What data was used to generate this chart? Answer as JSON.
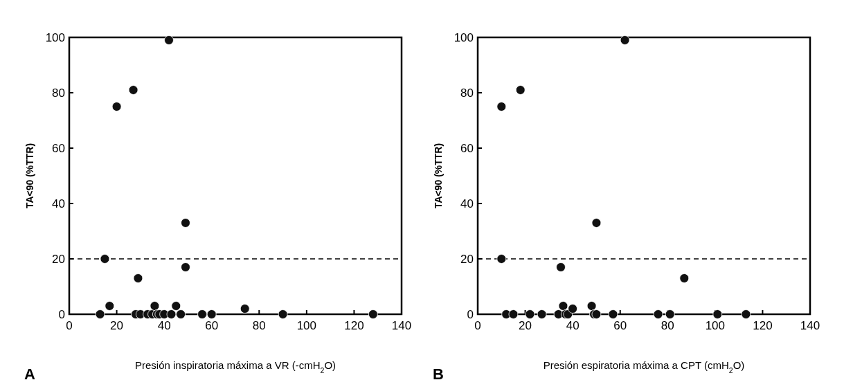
{
  "chart_data": [
    {
      "type": "scatter",
      "xlabel": "Presión inspiratoria máxima a VR (-cmH$_{2}$O)",
      "ylabel": "TA<90 (%TTR)",
      "annotations": [
        "A"
      ],
      "xlim": [
        0,
        140
      ],
      "xticks": [
        0,
        20,
        40,
        60,
        80,
        100,
        120,
        140
      ],
      "ylim": [
        0,
        100
      ],
      "yticks": [
        0,
        20,
        40,
        60,
        80,
        100
      ],
      "marker": "circle",
      "grid": false,
      "ref_lines": [
        {
          "axis": "y",
          "value": 20,
          "line_style": "dashed",
          "color": "#000000"
        }
      ],
      "series": [
        {
          "color": "#111111",
          "x": [
            13,
            15,
            17,
            20,
            27,
            28,
            29,
            30,
            33,
            35,
            36,
            37,
            38,
            40,
            42,
            43,
            45,
            47,
            49,
            49,
            56,
            60,
            74,
            90,
            128
          ],
          "values": [
            0,
            20,
            3,
            75,
            81,
            0,
            13,
            0,
            0,
            0,
            3,
            0,
            0,
            0,
            99,
            0,
            3,
            0,
            17,
            33,
            0,
            0,
            2,
            0,
            0
          ]
        }
      ]
    },
    {
      "type": "scatter",
      "xlabel": "Presión espiratoria máxima a CPT (cmH$_{2}$O)",
      "ylabel": "TA<90 (%TTR)",
      "annotations": [
        "B"
      ],
      "xlim": [
        0,
        140
      ],
      "xticks": [
        0,
        20,
        40,
        60,
        80,
        100,
        120,
        140
      ],
      "ylim": [
        0,
        100
      ],
      "yticks": [
        0,
        20,
        40,
        60,
        80,
        100
      ],
      "marker": "circle",
      "grid": false,
      "ref_lines": [
        {
          "axis": "y",
          "value": 20,
          "line_style": "dashed",
          "color": "#000000"
        }
      ],
      "series": [
        {
          "color": "#111111",
          "x": [
            10,
            10,
            12,
            15,
            18,
            22,
            27,
            34,
            35,
            36,
            37,
            38,
            40,
            48,
            49,
            50,
            50,
            57,
            62,
            76,
            81,
            87,
            101,
            113
          ],
          "values": [
            75,
            20,
            0,
            0,
            81,
            0,
            0,
            0,
            17,
            3,
            0,
            0,
            2,
            3,
            0,
            0,
            33,
            0,
            99,
            0,
            0,
            13,
            0,
            0
          ]
        }
      ]
    }
  ]
}
